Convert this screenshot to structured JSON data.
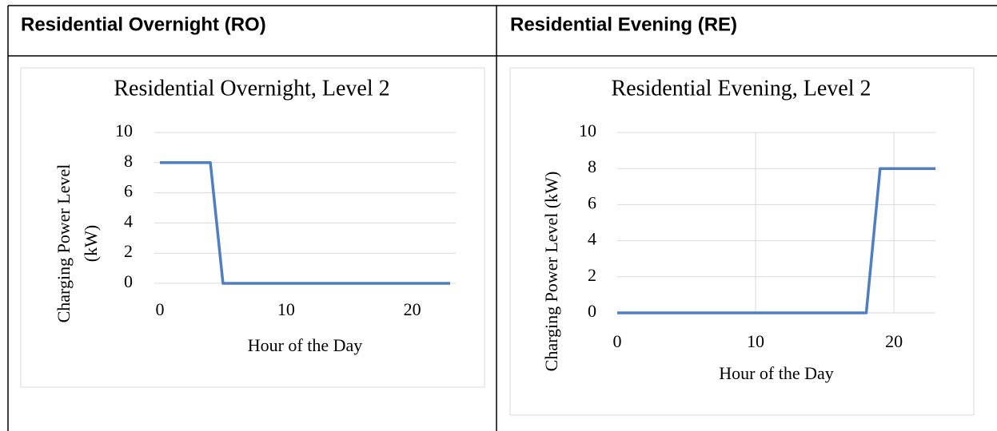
{
  "table": {
    "headers": [
      "Residential Overnight (RO)",
      "Residential Evening (RE)"
    ]
  },
  "chart_data": [
    {
      "type": "line",
      "title": "Residential Overnight, Level 2",
      "x_label": "Hour of the Day",
      "y_label": [
        "Charging Power Level",
        "(kW)"
      ],
      "x": [
        0,
        1,
        2,
        3,
        4,
        5,
        6,
        7,
        8,
        9,
        10,
        11,
        12,
        13,
        14,
        15,
        16,
        17,
        18,
        19,
        20,
        21,
        22,
        23
      ],
      "series": [
        {
          "name": "Residential Overnight",
          "color": "#4f7ec3",
          "values": [
            8,
            8,
            8,
            8,
            8,
            0,
            0,
            0,
            0,
            0,
            0,
            0,
            0,
            0,
            0,
            0,
            0,
            0,
            0,
            0,
            0,
            0,
            0,
            0
          ]
        }
      ],
      "xlim": [
        0,
        23
      ],
      "xticks": [
        0,
        10,
        20
      ],
      "ylim": [
        0,
        10
      ],
      "yticks": [
        0,
        2,
        4,
        6,
        8,
        10
      ],
      "grid": {
        "x": false,
        "y": true
      }
    },
    {
      "type": "line",
      "title": "Residential Evening, Level 2",
      "x_label": "Hour of the Day",
      "y_label": [
        "Charging Power Level (kW)"
      ],
      "x": [
        0,
        1,
        2,
        3,
        4,
        5,
        6,
        7,
        8,
        9,
        10,
        11,
        12,
        13,
        14,
        15,
        16,
        17,
        18,
        19,
        20,
        21,
        22,
        23
      ],
      "series": [
        {
          "name": "Residential Evening",
          "color": "#4f7ec3",
          "values": [
            0,
            0,
            0,
            0,
            0,
            0,
            0,
            0,
            0,
            0,
            0,
            0,
            0,
            0,
            0,
            0,
            0,
            0,
            0,
            8,
            8,
            8,
            8,
            8
          ]
        }
      ],
      "xlim": [
        0,
        23
      ],
      "xticks": [
        0,
        10,
        20
      ],
      "ylim": [
        0,
        10
      ],
      "yticks": [
        0,
        2,
        4,
        6,
        8,
        10
      ],
      "grid": {
        "x": true,
        "y": true
      }
    }
  ]
}
